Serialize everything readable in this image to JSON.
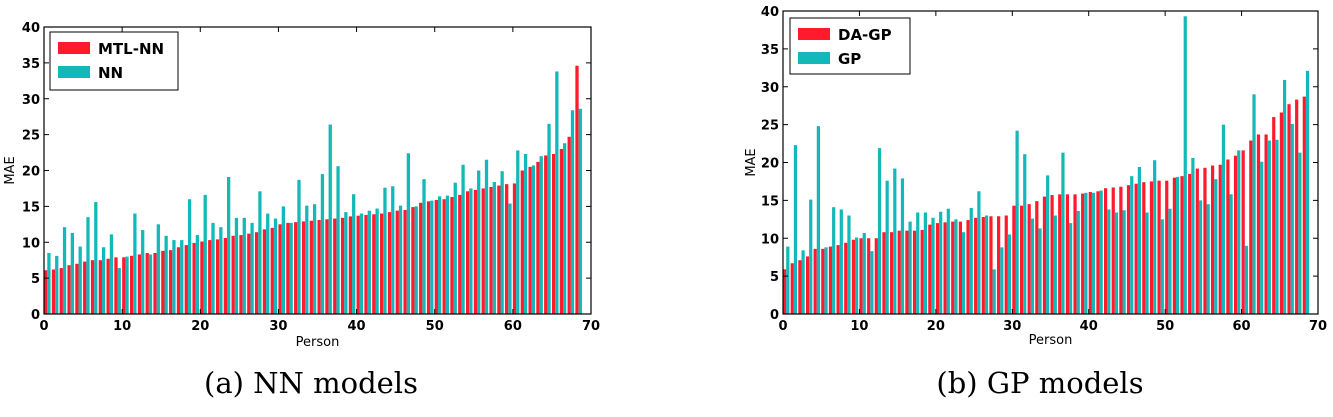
{
  "chart_data": [
    {
      "type": "bar",
      "caption": "(a) NN models",
      "xlabel": "Person",
      "ylabel": "MAE",
      "xlim": [
        0,
        70
      ],
      "ylim": [
        0,
        40
      ],
      "xticks": [
        0,
        10,
        20,
        30,
        40,
        50,
        60,
        70
      ],
      "yticks": [
        0,
        5,
        10,
        15,
        20,
        25,
        30,
        35,
        40
      ],
      "grid": false,
      "legend_position": "top-left",
      "series": [
        {
          "name": "MTL-NN",
          "color": "#ff1a2e",
          "values": [
            6.1,
            6.2,
            6.4,
            6.8,
            7.0,
            7.3,
            7.5,
            7.5,
            7.7,
            7.9,
            7.9,
            8.1,
            8.3,
            8.5,
            8.5,
            8.8,
            8.9,
            9.3,
            9.6,
            9.9,
            10.1,
            10.3,
            10.4,
            10.6,
            10.9,
            11.0,
            11.2,
            11.4,
            11.8,
            12.0,
            12.5,
            12.7,
            12.8,
            12.9,
            13.0,
            13.1,
            13.2,
            13.3,
            13.4,
            13.6,
            13.7,
            13.8,
            13.9,
            14.0,
            14.2,
            14.4,
            14.5,
            14.9,
            15.5,
            15.7,
            15.9,
            16.0,
            16.3,
            16.6,
            17.1,
            17.3,
            17.5,
            17.7,
            17.9,
            18.1,
            18.2,
            20.0,
            20.5,
            21.2,
            22.1,
            22.3,
            23.0,
            24.7,
            34.6
          ]
        },
        {
          "name": "NN",
          "color": "#13b8b8",
          "values": [
            8.5,
            8.1,
            12.1,
            11.3,
            9.4,
            13.5,
            15.6,
            9.3,
            11.1,
            6.4,
            8.0,
            14.0,
            11.7,
            8.3,
            12.5,
            10.9,
            10.3,
            10.3,
            16.0,
            11.0,
            16.6,
            12.7,
            12.1,
            19.1,
            13.4,
            13.4,
            12.7,
            17.1,
            14.0,
            13.3,
            15.0,
            12.7,
            18.7,
            15.1,
            15.3,
            19.5,
            26.4,
            20.6,
            14.2,
            16.7,
            14.0,
            14.4,
            14.7,
            17.6,
            17.8,
            15.1,
            22.4,
            15.0,
            18.8,
            15.8,
            16.4,
            16.5,
            18.3,
            20.8,
            17.5,
            20.0,
            21.5,
            18.4,
            19.9,
            15.4,
            22.8,
            22.3,
            20.7,
            22.0,
            26.5,
            33.8,
            23.8,
            28.4,
            28.6
          ]
        }
      ]
    },
    {
      "type": "bar",
      "caption": "(b) GP models",
      "xlabel": "Person",
      "ylabel": "MAE",
      "xlim": [
        0,
        70
      ],
      "ylim": [
        0,
        40
      ],
      "xticks": [
        0,
        10,
        20,
        30,
        40,
        50,
        60,
        70
      ],
      "yticks": [
        0,
        5,
        10,
        15,
        20,
        25,
        30,
        35,
        40
      ],
      "grid": false,
      "legend_position": "top-left",
      "series": [
        {
          "name": "DA-GP",
          "color": "#ff1a2e",
          "values": [
            5.9,
            6.7,
            7.1,
            7.6,
            8.6,
            8.6,
            8.9,
            9.1,
            9.4,
            9.8,
            10.0,
            10.0,
            10.0,
            10.8,
            10.8,
            11.0,
            11.0,
            11.0,
            11.1,
            11.8,
            12.0,
            12.1,
            12.2,
            12.2,
            12.4,
            12.7,
            12.8,
            12.9,
            12.9,
            13.0,
            14.3,
            14.3,
            14.5,
            14.9,
            15.5,
            15.7,
            15.8,
            15.8,
            15.8,
            15.9,
            16.1,
            16.2,
            16.6,
            16.7,
            16.8,
            17.0,
            17.2,
            17.4,
            17.5,
            17.6,
            17.6,
            18.0,
            18.2,
            18.5,
            19.2,
            19.3,
            19.6,
            19.7,
            20.4,
            20.9,
            21.6,
            22.9,
            23.7,
            23.7,
            26.0,
            26.6,
            27.7,
            28.3,
            28.7
          ]
        },
        {
          "name": "GP",
          "color": "#13b8b8",
          "values": [
            8.9,
            22.3,
            8.4,
            15.1,
            24.8,
            8.8,
            14.1,
            13.8,
            13.0,
            10.1,
            10.7,
            8.3,
            21.9,
            17.6,
            19.2,
            17.9,
            12.2,
            13.4,
            13.4,
            12.7,
            13.5,
            13.9,
            12.5,
            10.8,
            14.0,
            16.2,
            13.0,
            5.9,
            8.8,
            10.5,
            24.2,
            21.1,
            12.6,
            11.3,
            18.3,
            13.0,
            21.3,
            12.0,
            13.6,
            16.0,
            16.0,
            16.3,
            13.8,
            13.4,
            13.7,
            18.2,
            19.4,
            13.4,
            20.3,
            12.5,
            13.9,
            18.1,
            39.3,
            20.6,
            15.0,
            14.5,
            17.8,
            25.0,
            15.8,
            21.6,
            9.0,
            29.0,
            20.1,
            22.9,
            23.0,
            30.9,
            25.1,
            21.3,
            32.1
          ]
        }
      ]
    }
  ]
}
